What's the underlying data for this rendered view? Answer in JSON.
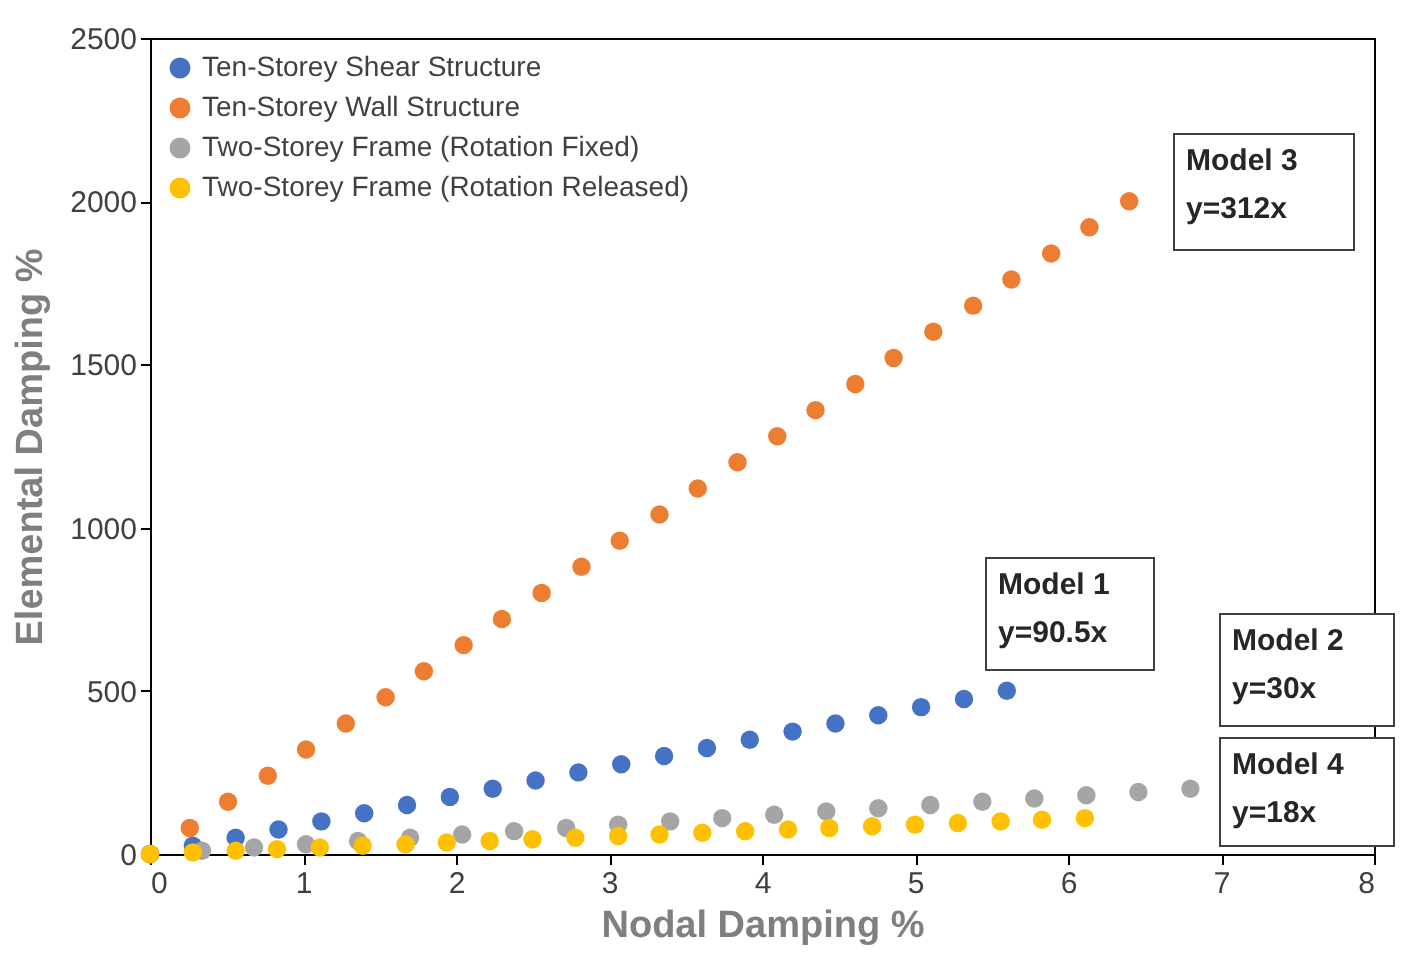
{
  "chart_data": {
    "type": "scatter",
    "xlabel": "Nodal Damping %",
    "ylabel": "Elemental Damping %",
    "xlim": [
      0,
      8
    ],
    "xticks": [
      0,
      1,
      2,
      3,
      4,
      5,
      6,
      7,
      8
    ],
    "ylim": [
      0,
      2500
    ],
    "yticks": [
      0,
      500,
      1000,
      1500,
      2000,
      2500
    ],
    "grid": false,
    "legend": "top left",
    "marker": "circle",
    "annotations": [
      "Model 3\ny=312x",
      "Model 1\ny=90.5x",
      "Model 2\ny=30x",
      "Model 4\ny=18x"
    ],
    "series": [
      {
        "name": "Ten-Storey Shear Structure",
        "color": "#4472c4",
        "x": [
          0,
          0.28,
          0.56,
          0.84,
          1.12,
          1.4,
          1.68,
          1.96,
          2.24,
          2.52,
          2.8,
          3.08,
          3.36,
          3.64,
          3.92,
          4.2,
          4.48,
          4.76,
          5.04,
          5.32,
          5.6
        ],
        "values": [
          0,
          25,
          50,
          75,
          100,
          125,
          150,
          175,
          200,
          225,
          250,
          275,
          300,
          325,
          350,
          375,
          400,
          425,
          450,
          475,
          500
        ]
      },
      {
        "name": "Ten-Storey Wall Structure",
        "color": "#ed7d31",
        "x": [
          0,
          0.26,
          0.51,
          0.77,
          1.02,
          1.28,
          1.54,
          1.79,
          2.05,
          2.3,
          2.56,
          2.82,
          3.07,
          3.33,
          3.58,
          3.84,
          4.1,
          4.35,
          4.61,
          4.86,
          5.12,
          5.38,
          5.63,
          5.89,
          6.14,
          6.4
        ],
        "values": [
          0,
          80,
          160,
          240,
          320,
          400,
          480,
          560,
          640,
          720,
          800,
          880,
          960,
          1040,
          1120,
          1200,
          1280,
          1360,
          1440,
          1520,
          1600,
          1680,
          1760,
          1840,
          1920,
          2000
        ]
      },
      {
        "name": "Two-Storey Frame (Rotation Fixed)",
        "color": "#a5a5a5",
        "x": [
          0,
          0.34,
          0.68,
          1.02,
          1.36,
          1.7,
          2.04,
          2.38,
          2.72,
          3.06,
          3.4,
          3.74,
          4.08,
          4.42,
          4.76,
          5.1,
          5.44,
          5.78,
          6.12,
          6.46,
          6.8
        ],
        "values": [
          0,
          10,
          20,
          30,
          40,
          50,
          60,
          70,
          80,
          90,
          100,
          110,
          120,
          130,
          140,
          150,
          160,
          170,
          180,
          190,
          200
        ]
      },
      {
        "name": "Two-Storey Frame (Rotation Released)",
        "color": "#ffc000",
        "x": [
          0,
          0.28,
          0.56,
          0.83,
          1.11,
          1.39,
          1.67,
          1.94,
          2.22,
          2.5,
          2.78,
          3.06,
          3.33,
          3.61,
          3.89,
          4.17,
          4.44,
          4.72,
          5,
          5.28,
          5.56,
          5.83,
          6.11
        ],
        "values": [
          0,
          5,
          10,
          15,
          20,
          25,
          30,
          35,
          40,
          45,
          50,
          55,
          60,
          65,
          70,
          75,
          80,
          85,
          90,
          95,
          100,
          105,
          110
        ]
      }
    ]
  }
}
